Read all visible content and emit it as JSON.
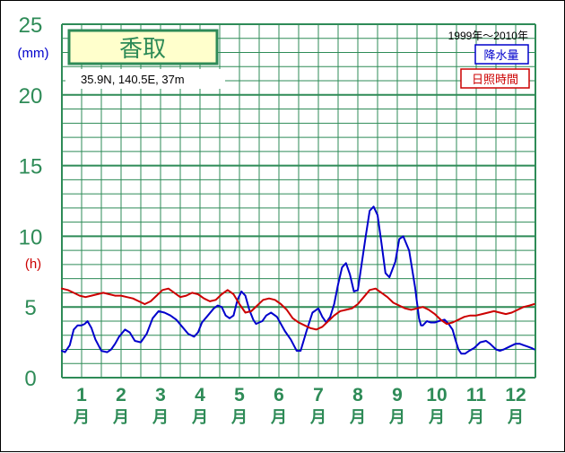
{
  "colors": {
    "grid": "#2e8b57",
    "axis_text": "#2e8b57",
    "precip": "#0000cc",
    "sunshine": "#cc0000",
    "title_fill": "#ffffcc"
  },
  "header": {
    "station": "香取",
    "coords": "35.9N,  140.5E,  37m",
    "period": "1999年〜2010年"
  },
  "units": {
    "precip": "(mm)",
    "sunshine": "(h)"
  },
  "chart_data": {
    "type": "line",
    "ylim": [
      0,
      25
    ],
    "yticks": [
      0,
      5,
      10,
      15,
      20,
      25
    ],
    "month_labels": [
      "1",
      "2",
      "3",
      "4",
      "5",
      "6",
      "7",
      "8",
      "9",
      "10",
      "11",
      "12"
    ],
    "month_unit": "月",
    "series": [
      {
        "name": "降水量",
        "color_key": "precip",
        "x": [
          0.0,
          0.08,
          0.2,
          0.3,
          0.4,
          0.5,
          0.58,
          0.65,
          0.75,
          0.85,
          1.0,
          1.15,
          1.25,
          1.35,
          1.45,
          1.6,
          1.72,
          1.85,
          2.0,
          2.15,
          2.3,
          2.45,
          2.6,
          2.75,
          2.9,
          3.05,
          3.2,
          3.35,
          3.45,
          3.55,
          3.7,
          3.85,
          3.95,
          4.05,
          4.15,
          4.25,
          4.35,
          4.45,
          4.55,
          4.65,
          4.75,
          4.85,
          4.92,
          5.0,
          5.08,
          5.18,
          5.3,
          5.45,
          5.55,
          5.65,
          5.8,
          5.95,
          6.05,
          6.2,
          6.35,
          6.5,
          6.6,
          6.7,
          6.8,
          6.9,
          7.0,
          7.1,
          7.2,
          7.3,
          7.4,
          7.5,
          7.6,
          7.7,
          7.8,
          7.9,
          8.0,
          8.1,
          8.2,
          8.3,
          8.45,
          8.55,
          8.65,
          8.8,
          8.95,
          9.05,
          9.1,
          9.15,
          9.25,
          9.35,
          9.45,
          9.55,
          9.7,
          9.8,
          9.9,
          9.97,
          10.05,
          10.12,
          10.22,
          10.32,
          10.45,
          10.6,
          10.75,
          10.85,
          11.0,
          11.1,
          11.2,
          11.35,
          11.5,
          11.6,
          11.7,
          11.8,
          11.9,
          11.97
        ],
        "values": [
          1.9,
          1.8,
          2.3,
          3.4,
          3.7,
          3.7,
          3.8,
          4.0,
          3.5,
          2.7,
          1.9,
          1.8,
          2.0,
          2.4,
          2.9,
          3.4,
          3.2,
          2.6,
          2.5,
          3.1,
          4.2,
          4.7,
          4.6,
          4.4,
          4.1,
          3.6,
          3.1,
          2.9,
          3.2,
          3.9,
          4.4,
          4.9,
          5.1,
          5.0,
          4.4,
          4.2,
          4.4,
          5.5,
          6.1,
          5.8,
          4.8,
          4.1,
          3.8,
          3.9,
          4.0,
          4.4,
          4.6,
          4.3,
          3.8,
          3.3,
          2.7,
          1.9,
          1.9,
          3.3,
          4.6,
          4.9,
          4.3,
          3.9,
          4.3,
          5.2,
          6.6,
          7.8,
          8.1,
          7.3,
          6.1,
          6.2,
          8.1,
          10.0,
          11.8,
          12.1,
          11.5,
          9.5,
          7.4,
          7.1,
          8.2,
          9.8,
          10.0,
          9.0,
          6.4,
          4.2,
          3.7,
          3.7,
          4.0,
          3.9,
          3.9,
          4.0,
          4.1,
          3.8,
          3.4,
          2.7,
          2.0,
          1.7,
          1.7,
          1.9,
          2.1,
          2.5,
          2.6,
          2.4,
          2.0,
          1.9,
          2.0,
          2.2,
          2.4,
          2.4,
          2.3,
          2.2,
          2.1,
          2.0
        ]
      },
      {
        "name": "日照時間",
        "color_key": "sunshine",
        "x": [
          0.0,
          0.15,
          0.3,
          0.45,
          0.6,
          0.75,
          0.9,
          1.05,
          1.2,
          1.35,
          1.5,
          1.65,
          1.8,
          1.95,
          2.1,
          2.25,
          2.4,
          2.55,
          2.7,
          2.85,
          3.0,
          3.15,
          3.3,
          3.45,
          3.6,
          3.75,
          3.9,
          4.05,
          4.2,
          4.35,
          4.5,
          4.65,
          4.8,
          4.95,
          5.1,
          5.25,
          5.4,
          5.55,
          5.7,
          5.85,
          6.0,
          6.15,
          6.3,
          6.45,
          6.6,
          6.75,
          6.9,
          7.05,
          7.2,
          7.35,
          7.5,
          7.65,
          7.8,
          7.95,
          8.1,
          8.25,
          8.4,
          8.55,
          8.7,
          8.85,
          9.0,
          9.15,
          9.3,
          9.45,
          9.6,
          9.75,
          9.9,
          10.05,
          10.2,
          10.35,
          10.5,
          10.65,
          10.8,
          10.95,
          11.1,
          11.25,
          11.4,
          11.55,
          11.7,
          11.85,
          11.97
        ],
        "values": [
          6.3,
          6.2,
          6.0,
          5.8,
          5.7,
          5.8,
          5.9,
          6.0,
          5.9,
          5.8,
          5.8,
          5.7,
          5.6,
          5.4,
          5.2,
          5.4,
          5.8,
          6.2,
          6.3,
          6.0,
          5.7,
          5.8,
          6.0,
          5.9,
          5.6,
          5.4,
          5.5,
          5.9,
          6.2,
          5.9,
          5.2,
          4.6,
          4.7,
          5.1,
          5.5,
          5.6,
          5.5,
          5.2,
          4.8,
          4.2,
          3.9,
          3.7,
          3.5,
          3.4,
          3.6,
          4.0,
          4.4,
          4.7,
          4.8,
          4.9,
          5.2,
          5.7,
          6.2,
          6.3,
          6.0,
          5.7,
          5.3,
          5.1,
          4.9,
          4.8,
          4.9,
          5.0,
          4.8,
          4.5,
          4.1,
          3.8,
          3.9,
          4.1,
          4.3,
          4.4,
          4.4,
          4.5,
          4.6,
          4.7,
          4.6,
          4.5,
          4.6,
          4.8,
          5.0,
          5.1,
          5.2
        ]
      }
    ]
  }
}
